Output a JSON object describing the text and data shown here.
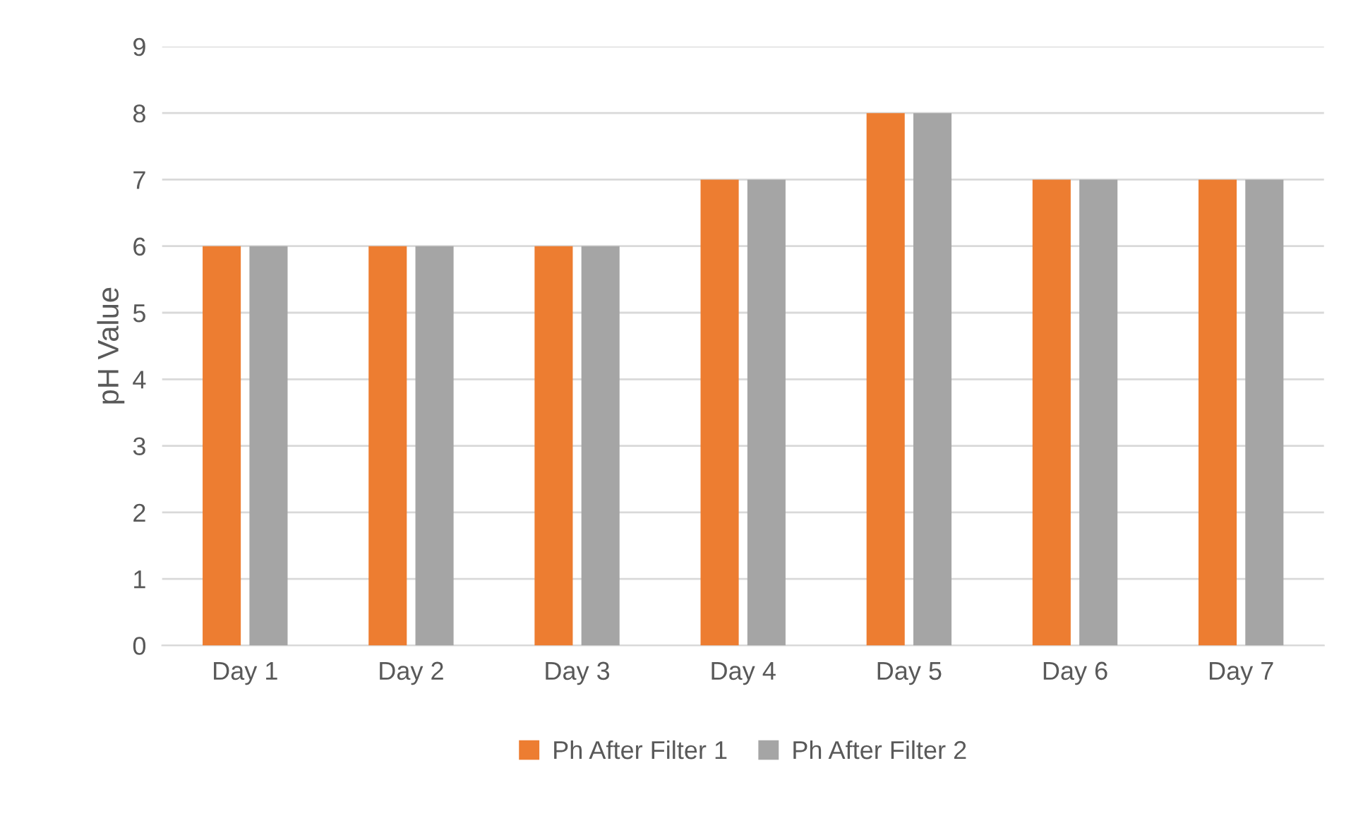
{
  "chart_data": {
    "type": "bar",
    "ylabel": "pH Value",
    "categories": [
      "Day 1",
      "Day 2",
      "Day 3",
      "Day 4",
      "Day 5",
      "Day 6",
      "Day 7"
    ],
    "series": [
      {
        "name": "Ph After Filter 1",
        "color": "#ed7d31",
        "values": [
          6,
          6,
          6,
          7,
          8,
          7,
          7
        ]
      },
      {
        "name": "Ph After Filter 2",
        "color": "#a5a5a5",
        "values": [
          6,
          6,
          6,
          7,
          8,
          7,
          7
        ]
      }
    ],
    "ylim": [
      0,
      9
    ],
    "yticks": [
      0,
      1,
      2,
      3,
      4,
      5,
      6,
      7,
      8,
      9
    ],
    "grid": "y",
    "legend": "bottom"
  }
}
